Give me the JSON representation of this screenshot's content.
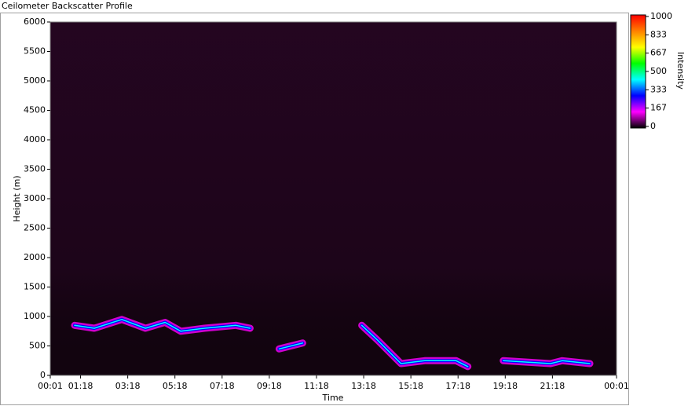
{
  "chart_data": {
    "type": "heatmap",
    "title": "Ceilometer Backscatter Profile",
    "x_label": "Time",
    "y_label": "Height (m)",
    "colorbar_label": "Intensity",
    "xlim": [
      1,
      1441
    ],
    "xticks": [
      {
        "value": 1,
        "label": "00:01"
      },
      {
        "value": 78,
        "label": "01:18"
      },
      {
        "value": 198,
        "label": "03:18"
      },
      {
        "value": 318,
        "label": "05:18"
      },
      {
        "value": 438,
        "label": "07:18"
      },
      {
        "value": 558,
        "label": "09:18"
      },
      {
        "value": 678,
        "label": "11:18"
      },
      {
        "value": 798,
        "label": "13:18"
      },
      {
        "value": 918,
        "label": "15:18"
      },
      {
        "value": 1038,
        "label": "17:18"
      },
      {
        "value": 1158,
        "label": "19:18"
      },
      {
        "value": 1278,
        "label": "21:18"
      },
      {
        "value": 1441,
        "label": "00:01"
      }
    ],
    "ylim": [
      0,
      6000
    ],
    "yticks": [
      0,
      500,
      1000,
      1500,
      2000,
      2500,
      3000,
      3500,
      4000,
      4500,
      5000,
      5500,
      6000
    ],
    "clim": [
      0,
      1000
    ],
    "cticks": [
      0,
      167,
      333,
      500,
      667,
      833,
      1000
    ],
    "colormap": [
      "#000000",
      "#ff00ff",
      "#0000ff",
      "#00ffff",
      "#00ff00",
      "#ffff00",
      "#ff8000",
      "#ff0000"
    ],
    "background": "#12040f",
    "layer": {
      "x": [
        63,
        113,
        183,
        243,
        293,
        333,
        393,
        473,
        509,
        null,
        583,
        643,
        null,
        793,
        833,
        893,
        953,
        1033,
        1063,
        null,
        1153,
        1273,
        1303,
        1373
      ],
      "y": [
        850,
        800,
        950,
        800,
        900,
        750,
        800,
        850,
        800,
        null,
        450,
        550,
        null,
        850,
        600,
        200,
        250,
        250,
        150,
        null,
        250,
        200,
        250,
        200
      ]
    }
  }
}
